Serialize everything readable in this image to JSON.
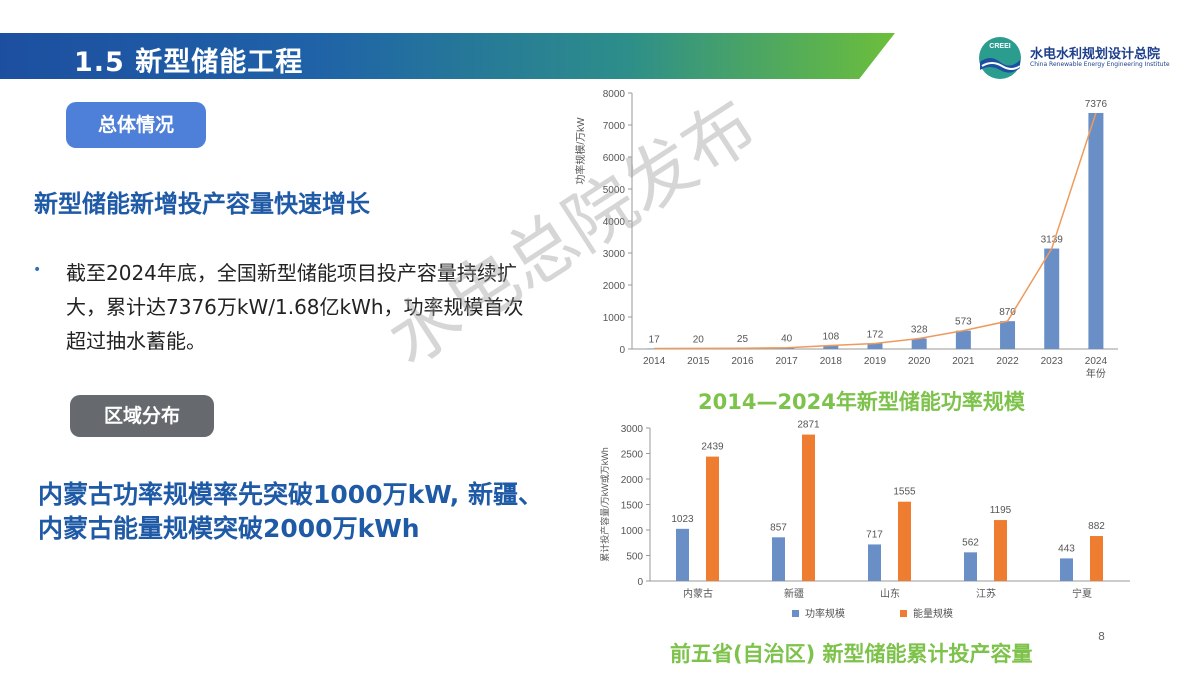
{
  "header": {
    "title": "1.5 新型储能工程"
  },
  "org": {
    "name_cn": "水电水利规划设计总院",
    "name_en": "China Renewable Energy Engineering Institute",
    "logo_text": "CREEI"
  },
  "overview": {
    "pill": "总体情况",
    "headline": "新型储能新增投产容量快速增长",
    "bullet": "截至2024年底，全国新型储能项目投产容量持续扩大，累计达7376万kW/1.68亿kWh，功率规模首次超过抽水蓄能。"
  },
  "region": {
    "pill": "区域分布",
    "text": "内蒙古功率规模率先突破1000万kW, 新疆、内蒙古能量规模突破2000万kWh"
  },
  "watermark": "水电总院发布",
  "page_number": "8",
  "colors": {
    "bar_blue": "#6a8fc7",
    "bar_orange": "#ee7d31",
    "title_green": "#7dc24a",
    "accent_blue": "#1f5aa6"
  },
  "chart_data": [
    {
      "type": "bar",
      "title": "2014—2024年新型储能功率规模",
      "ylabel": "功率规模/万kW",
      "xlabel": "年份",
      "ylim": [
        0,
        8000
      ],
      "yticks": [
        0,
        1000,
        2000,
        3000,
        4000,
        5000,
        6000,
        7000,
        8000
      ],
      "categories": [
        "2014",
        "2015",
        "2016",
        "2017",
        "2018",
        "2019",
        "2020",
        "2021",
        "2022",
        "2023",
        "2024"
      ],
      "values": [
        17,
        20,
        25,
        40,
        108,
        172,
        328,
        573,
        870,
        3139,
        7376
      ],
      "overlay_line": true,
      "grid": false
    },
    {
      "type": "bar",
      "title": "前五省(自治区) 新型储能累计投产容量",
      "ylabel": "累计投产容量/万kW或万kWh",
      "ylim": [
        0,
        3000
      ],
      "yticks": [
        0,
        500,
        1000,
        1500,
        2000,
        2500,
        3000
      ],
      "categories": [
        "内蒙古",
        "新疆",
        "山东",
        "江苏",
        "宁夏"
      ],
      "series": [
        {
          "name": "功率规模",
          "values": [
            1023,
            857,
            717,
            562,
            443
          ]
        },
        {
          "name": "能量规模",
          "values": [
            2439,
            2871,
            1555,
            1195,
            882
          ]
        }
      ],
      "legend": "bottom",
      "grid": false
    }
  ]
}
